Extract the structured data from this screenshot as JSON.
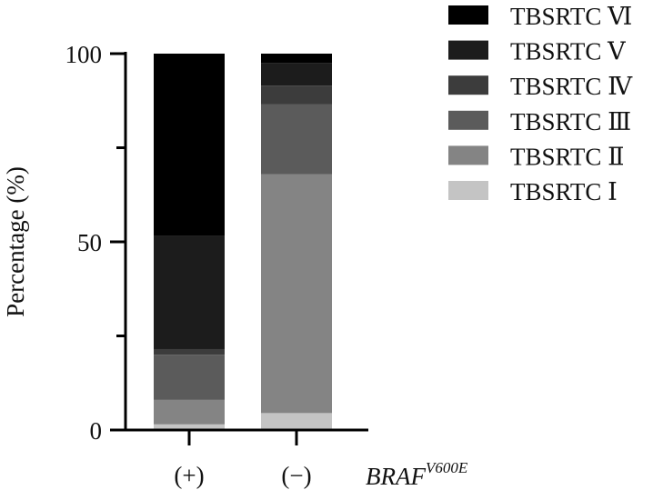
{
  "chart_data": {
    "type": "bar",
    "stacked": true,
    "categories": [
      "(+)",
      "(−)"
    ],
    "ylabel": "Percentage (%)",
    "xlabel_main": "BRAF",
    "xlabel_sup": "V600E",
    "ylim": [
      0,
      100
    ],
    "yticks": [
      "0",
      "50",
      "100"
    ],
    "yticks_values": [
      0,
      50,
      100
    ],
    "yminor_values": [
      25,
      75
    ],
    "legend_position": "top-right",
    "series": [
      {
        "name": "TBSRTC Ⅰ",
        "color": "#c4c4c4",
        "values": [
          1.5,
          4.5
        ]
      },
      {
        "name": "TBSRTC Ⅱ",
        "color": "#848484",
        "values": [
          6.5,
          63.5
        ]
      },
      {
        "name": "TBSRTC Ⅲ",
        "color": "#5b5b5b",
        "values": [
          12.0,
          18.5
        ]
      },
      {
        "name": "TBSRTC Ⅳ",
        "color": "#3c3c3c",
        "values": [
          1.5,
          5.0
        ]
      },
      {
        "name": "TBSRTC Ⅴ",
        "color": "#1c1c1c",
        "values": [
          30.0,
          6.0
        ]
      },
      {
        "name": "TBSRTC Ⅵ",
        "color": "#000000",
        "values": [
          48.5,
          2.5
        ]
      }
    ]
  }
}
